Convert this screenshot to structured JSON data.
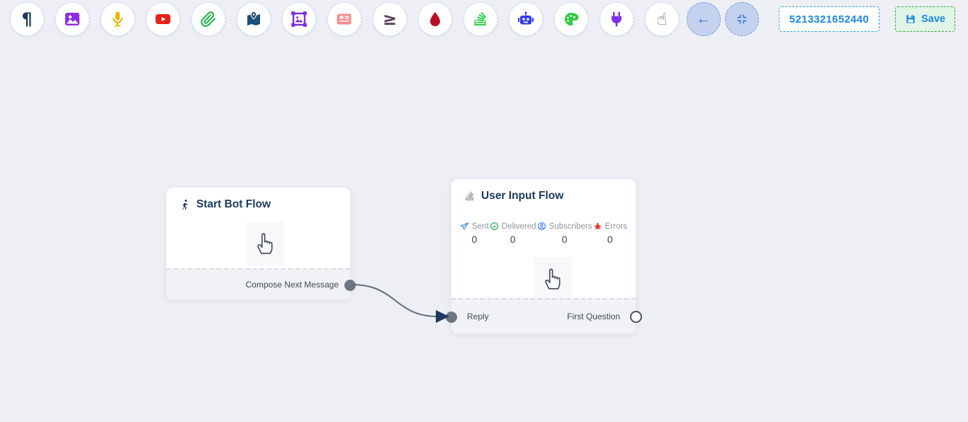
{
  "toolbar": {
    "items": [
      {
        "name": "text",
        "icon": "paragraph-icon",
        "glyph": "¶",
        "color": "#1c3a5e"
      },
      {
        "name": "image",
        "icon": "image-icon",
        "color": "#8e2de2"
      },
      {
        "name": "audio",
        "icon": "microphone-icon",
        "color": "#f0b400"
      },
      {
        "name": "video",
        "icon": "youtube-icon",
        "color": "#e62117"
      },
      {
        "name": "attachment",
        "icon": "paperclip-icon",
        "color": "#27b24a"
      },
      {
        "name": "location",
        "icon": "map-icon",
        "color": "#1d4e7a"
      },
      {
        "name": "media",
        "icon": "framed-image-icon",
        "color": "#7b2fe0"
      },
      {
        "name": "generic-template",
        "icon": "newspaper-icon",
        "color": "#f98b8b"
      },
      {
        "name": "condition",
        "icon": "greater-equal-icon",
        "glyph": "≥",
        "color": "#583a52"
      },
      {
        "name": "drip",
        "icon": "droplet-icon",
        "color": "#bc0d28"
      },
      {
        "name": "user-input",
        "icon": "stack-icon",
        "color": "#2fd14c"
      },
      {
        "name": "bot",
        "icon": "robot-icon",
        "color": "#2b3cf0"
      },
      {
        "name": "theme",
        "icon": "palette-icon",
        "color": "#2fca3e"
      },
      {
        "name": "plugin",
        "icon": "plug-icon",
        "color": "#7e2ff0"
      },
      {
        "name": "gesture",
        "icon": "hand-icon",
        "glyph": "☝",
        "color": "#7b5363"
      }
    ]
  },
  "controls": {
    "back_glyph": "←",
    "flow_id": "5213321652440",
    "save_label": "Save",
    "accent_blue": "#1e88e5",
    "save_green": "#43a047"
  },
  "nodes": {
    "start": {
      "title": "Start Bot Flow",
      "output_label": "Compose Next Message"
    },
    "user_input": {
      "title": "User Input Flow",
      "stats": [
        {
          "label": "Sent",
          "value": "0",
          "icon": "send-icon",
          "color": "#4a90d9"
        },
        {
          "label": "Delivered",
          "value": "0",
          "icon": "check-circle-icon",
          "color": "#34a853"
        },
        {
          "label": "Subscribers",
          "value": "0",
          "icon": "subscriber-icon",
          "color": "#4285f4"
        },
        {
          "label": "Errors",
          "value": "0",
          "icon": "bug-icon",
          "color": "#e53935"
        }
      ],
      "input_label": "Reply",
      "output_label": "First Question"
    }
  }
}
